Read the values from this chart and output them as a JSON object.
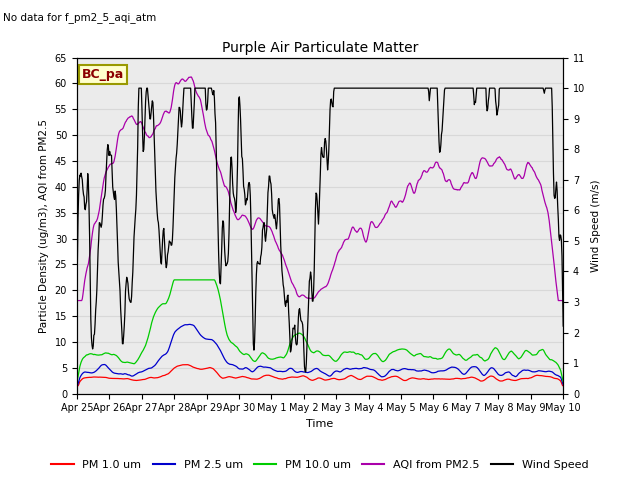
{
  "title": "Purple Air Particulate Matter",
  "subtitle": "No data for f_pm2_5_aqi_atm",
  "station_label": "BC_pa",
  "xlabel": "Time",
  "ylabel_left": "Particle Density (ug/m3), AQI from PM2.5",
  "ylabel_right": "Wind Speed (m/s)",
  "ylim_left": [
    0,
    65
  ],
  "ylim_right": [
    0.0,
    11.0
  ],
  "yticks_left": [
    0,
    5,
    10,
    15,
    20,
    25,
    30,
    35,
    40,
    45,
    50,
    55,
    60,
    65
  ],
  "yticks_right": [
    0.0,
    1.0,
    2.0,
    3.0,
    4.0,
    5.0,
    6.0,
    7.0,
    8.0,
    9.0,
    10.0,
    11.0
  ],
  "xtick_labels": [
    "Apr 25",
    "Apr 26",
    "Apr 27",
    "Apr 28",
    "Apr 29",
    "Apr 30",
    "May 1",
    "May 2",
    "May 3",
    "May 4",
    "May 5",
    "May 6",
    "May 7",
    "May 8",
    "May 9",
    "May 10"
  ],
  "colors": {
    "pm1": "#ff0000",
    "pm25": "#0000cc",
    "pm10": "#00cc00",
    "aqi": "#aa00aa",
    "wind": "#000000"
  },
  "legend_labels": [
    "PM 1.0 um",
    "PM 2.5 um",
    "PM 10.0 um",
    "AQI from PM2.5",
    "Wind Speed"
  ],
  "grid_color": "#d8d8d8",
  "bg_color": "#ebebeb",
  "seed": 7
}
